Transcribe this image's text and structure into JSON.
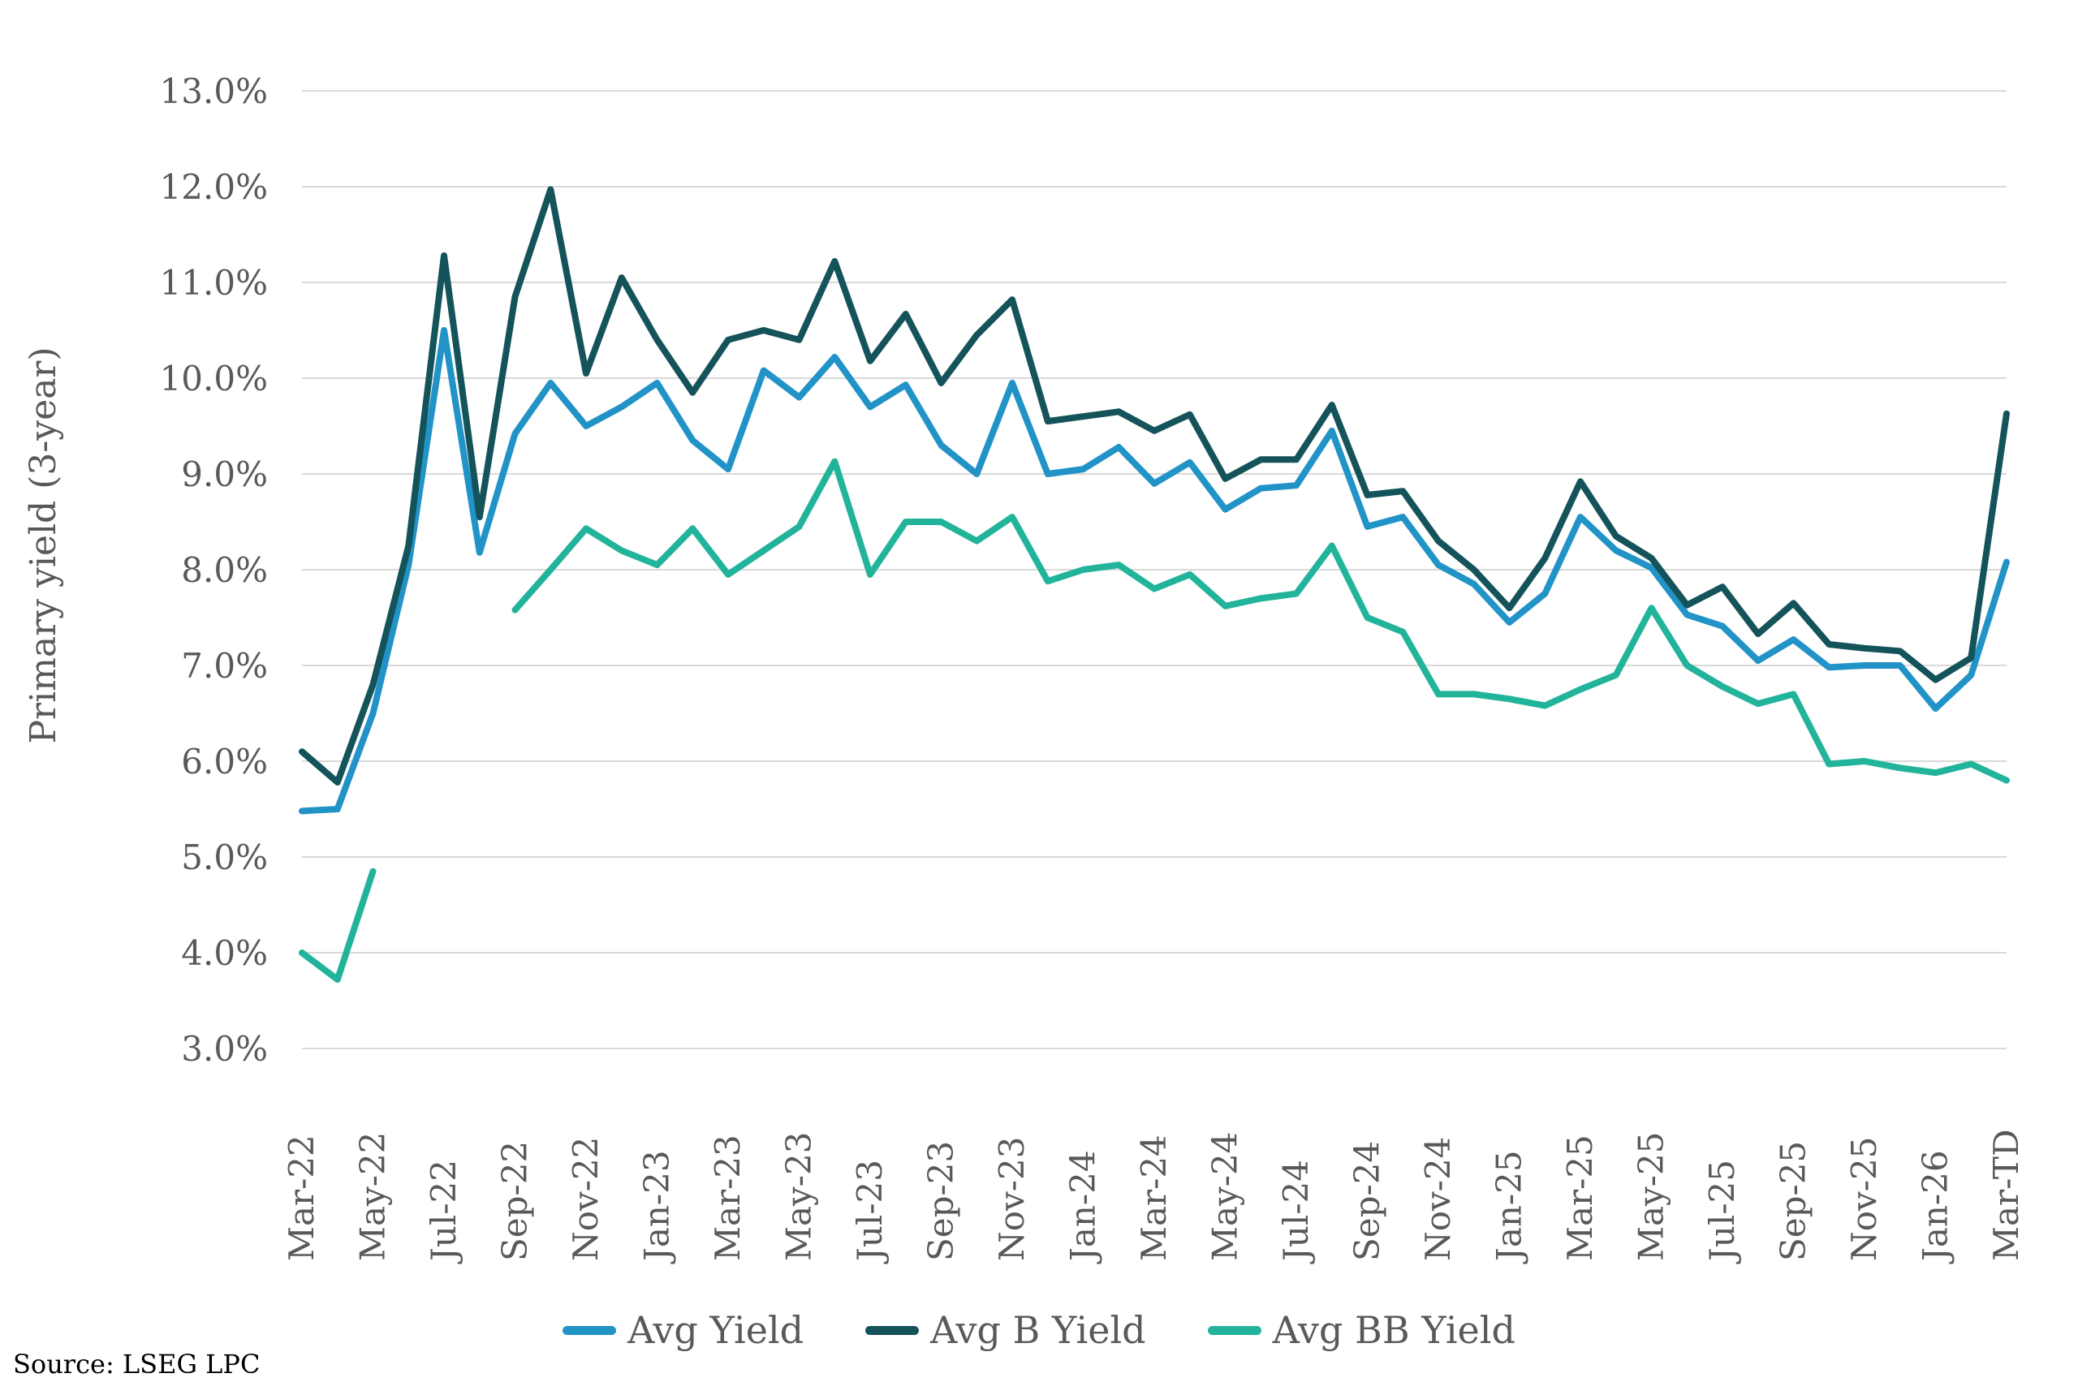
{
  "y_axis_title": "Primary yield (3-year)",
  "source_note": "Source: LSEG LPC",
  "colors": {
    "avg_yield": "#2193C7",
    "avg_b_yield": "#14535A",
    "avg_bb_yield": "#22B39B",
    "gridline": "#D9D9D9",
    "axis_text": "#595959",
    "source_text": "#000000"
  },
  "chart_data": {
    "type": "line",
    "title": "",
    "xlabel": "",
    "ylabel": "Primary yield (3-year)",
    "ylim": [
      3.0,
      13.0
    ],
    "y_ticks": [
      "13.0%",
      "12.0%",
      "11.0%",
      "10.0%",
      "9.0%",
      "8.0%",
      "7.0%",
      "6.0%",
      "5.0%",
      "4.0%",
      "3.0%"
    ],
    "y_tick_values": [
      13,
      12,
      11,
      10,
      9,
      8,
      7,
      6,
      5,
      4,
      3
    ],
    "grid": "horizontal",
    "legend_position": "bottom",
    "x_label_every": 2,
    "x": [
      "Mar-22",
      "Apr-22",
      "May-22",
      "Jun-22",
      "Jul-22",
      "Aug-22",
      "Sep-22",
      "Oct-22",
      "Nov-22",
      "Dec-22",
      "Jan-23",
      "Feb-23",
      "Mar-23",
      "Apr-23",
      "May-23",
      "Jun-23",
      "Jul-23",
      "Aug-23",
      "Sep-23",
      "Oct-23",
      "Nov-23",
      "Dec-23",
      "Jan-24",
      "Feb-24",
      "Mar-24",
      "Apr-24",
      "May-24",
      "Jun-24",
      "Jul-24",
      "Aug-24",
      "Sep-24",
      "Oct-24",
      "Nov-24",
      "Dec-24",
      "Jan-25",
      "Feb-25",
      "Mar-25",
      "Apr-25",
      "May-25",
      "Jun-25",
      "Jul-25",
      "Aug-25",
      "Sep-25",
      "Oct-25",
      "Nov-25",
      "Dec-25",
      "Jan-26",
      "Feb-26",
      "Mar-TD"
    ],
    "series": [
      {
        "name": "Avg Yield",
        "color": "#2193C7",
        "values": [
          5.48,
          5.5,
          6.5,
          8.05,
          10.5,
          8.18,
          9.42,
          9.95,
          9.5,
          9.7,
          9.95,
          9.35,
          9.05,
          10.08,
          9.8,
          10.22,
          9.7,
          9.93,
          9.3,
          9.0,
          9.95,
          9.0,
          9.05,
          9.28,
          8.9,
          9.12,
          8.63,
          8.85,
          8.88,
          9.45,
          8.45,
          8.55,
          8.05,
          7.85,
          7.45,
          7.75,
          8.55,
          8.2,
          8.02,
          7.53,
          7.41,
          7.05,
          7.27,
          6.98,
          7.0,
          7.0,
          6.55,
          6.9,
          8.08
        ]
      },
      {
        "name": "Avg B Yield",
        "color": "#14535A",
        "values": [
          6.1,
          5.78,
          6.8,
          8.25,
          11.28,
          8.55,
          10.85,
          11.97,
          10.05,
          11.05,
          10.4,
          9.85,
          10.4,
          10.5,
          10.4,
          11.22,
          10.18,
          10.67,
          9.95,
          10.45,
          10.82,
          9.55,
          9.6,
          9.65,
          9.45,
          9.62,
          8.95,
          9.15,
          9.15,
          9.72,
          8.78,
          8.82,
          8.3,
          8.0,
          7.6,
          8.12,
          8.92,
          8.35,
          8.12,
          7.63,
          7.82,
          7.33,
          7.65,
          7.22,
          7.18,
          7.15,
          6.85,
          7.08,
          9.63
        ]
      },
      {
        "name": "Avg BB Yield",
        "color": "#22B39B",
        "values": [
          4.0,
          3.72,
          4.85,
          null,
          null,
          null,
          7.58,
          8.0,
          8.43,
          8.2,
          8.05,
          8.43,
          7.95,
          8.2,
          8.45,
          9.13,
          7.95,
          8.5,
          8.5,
          8.3,
          8.55,
          7.88,
          8.0,
          8.05,
          7.8,
          7.95,
          7.62,
          7.7,
          7.75,
          8.25,
          7.5,
          7.35,
          6.7,
          6.7,
          6.65,
          6.58,
          6.75,
          6.9,
          7.6,
          7.0,
          6.78,
          6.6,
          6.7,
          5.97,
          6.0,
          5.93,
          5.88,
          5.97,
          5.8
        ]
      }
    ]
  }
}
